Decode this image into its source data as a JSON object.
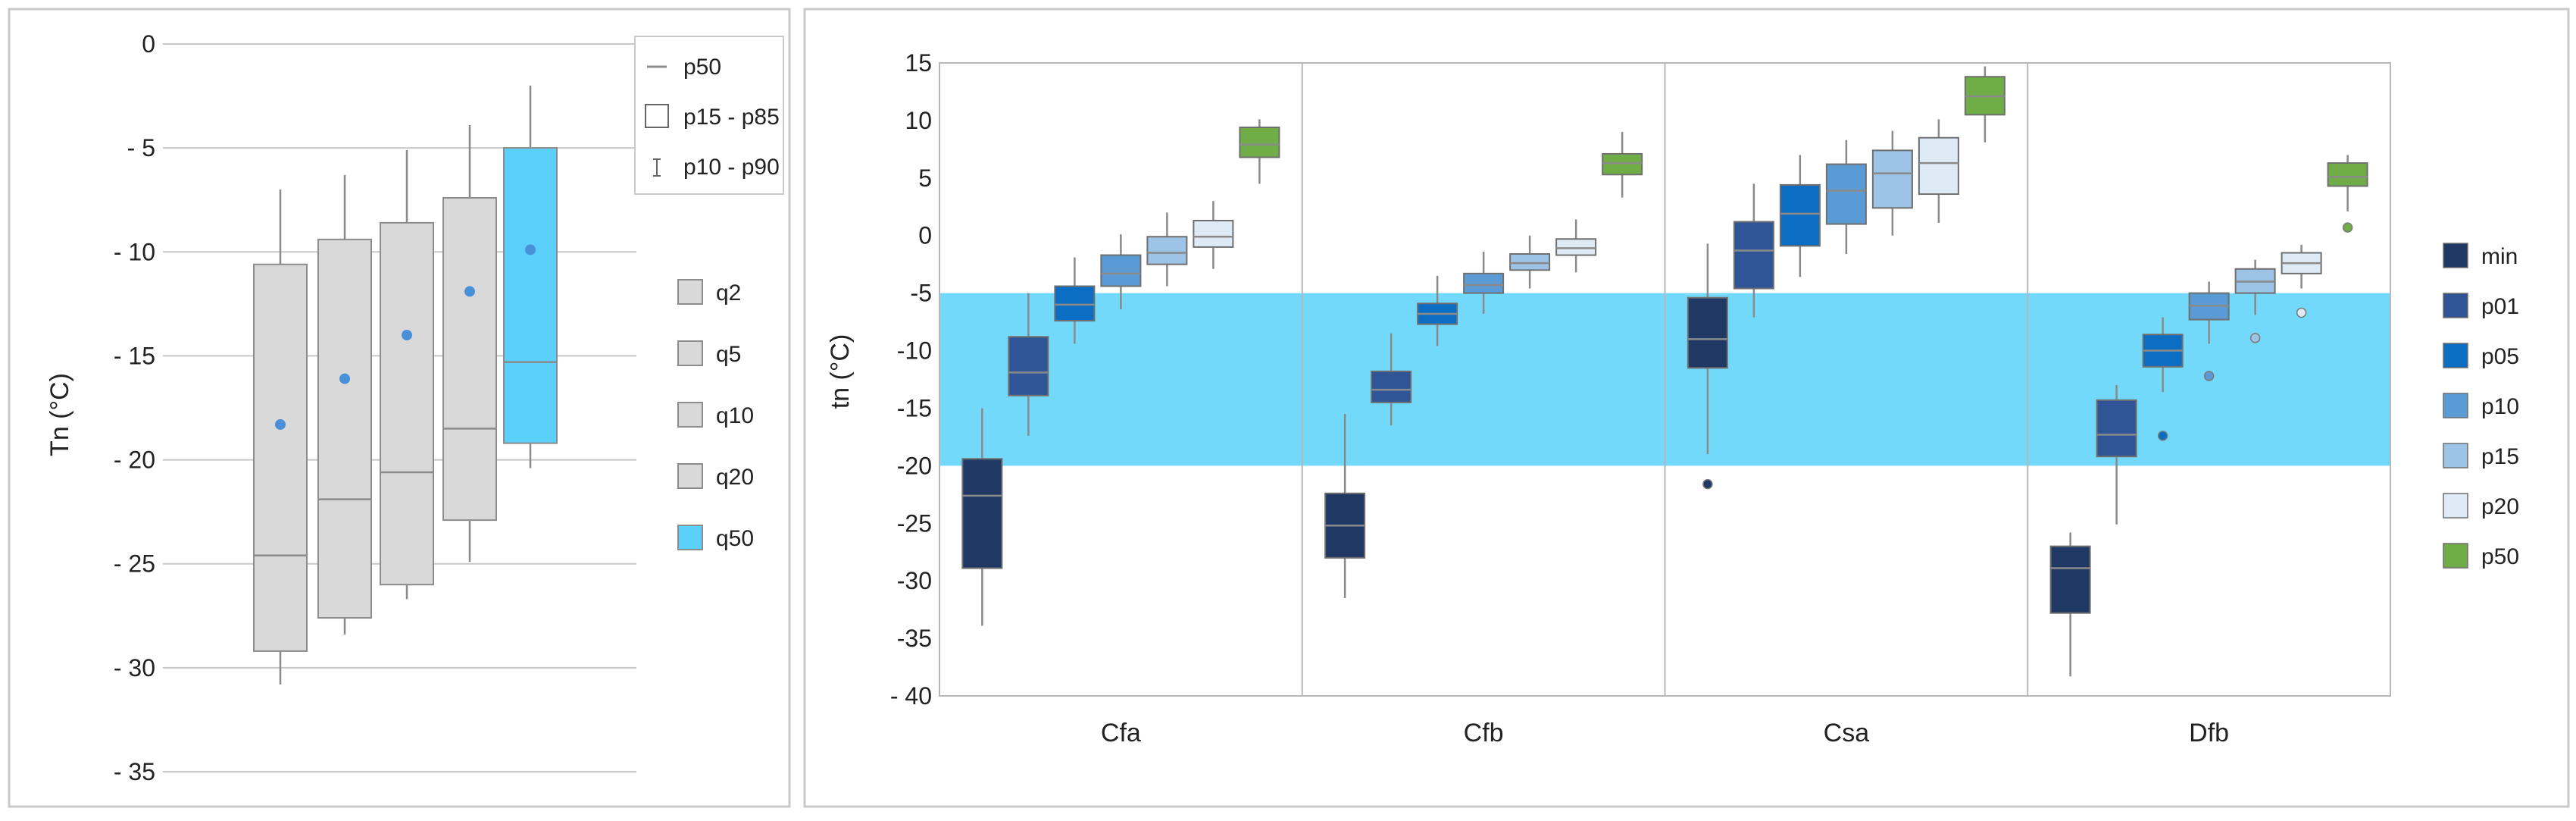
{
  "chart_data": [
    {
      "type": "boxplot",
      "ylabel": "Tn (°C)",
      "ylim": [
        -35,
        0
      ],
      "yticks": [
        0,
        -5,
        -10,
        -15,
        -20,
        -25,
        -30,
        -35
      ],
      "ytick_labels": [
        "0",
        "- 5",
        "- 10",
        "- 15",
        "- 20",
        "- 25",
        "- 30",
        "- 35"
      ],
      "colors": {
        "q": "#d9d9d9",
        "q50": "#5bd0fa",
        "box_stroke": "#8c8c8c",
        "mean_dot": "#4a90d9"
      },
      "stat_legend": [
        {
          "key": "median",
          "label": "p50"
        },
        {
          "key": "box",
          "label": "p15 - p85"
        },
        {
          "key": "whisker",
          "label": "p10 - p90"
        }
      ],
      "series": [
        {
          "name": "q2",
          "p10": -30.8,
          "p15": -29.2,
          "p50": -24.6,
          "p85": -10.6,
          "p90": -7.0,
          "mean": -18.3
        },
        {
          "name": "q5",
          "p10": -28.4,
          "p15": -27.6,
          "p50": -21.9,
          "p85": -9.4,
          "p90": -6.3,
          "mean": -16.1
        },
        {
          "name": "q10",
          "p10": -26.7,
          "p15": -26.0,
          "p50": -20.6,
          "p85": -8.6,
          "p90": -5.1,
          "mean": -14.0
        },
        {
          "name": "q20",
          "p10": -24.9,
          "p15": -22.9,
          "p50": -18.5,
          "p85": -7.4,
          "p90": -3.9,
          "mean": -11.9
        },
        {
          "name": "q50",
          "p10": -20.4,
          "p15": -19.2,
          "p50": -15.3,
          "p85": -5.0,
          "p90": -2.0,
          "mean": -9.9
        }
      ]
    },
    {
      "type": "boxplot",
      "ylabel": "tn (°C)",
      "ylim": [
        -40,
        15
      ],
      "yticks": [
        15,
        10,
        5,
        0,
        -5,
        -10,
        -15,
        -20,
        -25,
        -30,
        -35,
        -40
      ],
      "ytick_labels": [
        "15",
        "10",
        "5",
        "0",
        "-5",
        "-10",
        "-15",
        "-20",
        "-25",
        "-30",
        "-35",
        "- 40"
      ],
      "highlight_band": {
        "from": -20,
        "to": -5,
        "color": "#72d9fb"
      },
      "categories": [
        "Cfa",
        "Cfb",
        "Csa",
        "Dfb"
      ],
      "series_names": [
        "min",
        "p01",
        "p05",
        "p10",
        "p15",
        "p20",
        "p50"
      ],
      "series_colors": [
        "#1f3864",
        "#2f5597",
        "#0b6ec2",
        "#5b9bd5",
        "#9dc3e6",
        "#deebf7",
        "#70ad47"
      ],
      "groups": [
        {
          "category": "Cfa",
          "boxes": [
            {
              "series": "min",
              "whisker_low": -33.9,
              "q1": -28.9,
              "median": -22.6,
              "q3": -19.4,
              "whisker_high": -15.0
            },
            {
              "series": "p01",
              "whisker_low": -17.4,
              "q1": -13.9,
              "median": -11.9,
              "q3": -8.8,
              "whisker_high": -5.0
            },
            {
              "series": "p05",
              "whisker_low": -9.4,
              "q1": -7.4,
              "median": -6.0,
              "q3": -4.4,
              "whisker_high": -1.9
            },
            {
              "series": "p10",
              "whisker_low": -6.4,
              "q1": -4.4,
              "median": -3.3,
              "q3": -1.7,
              "whisker_high": 0.1
            },
            {
              "series": "p15",
              "whisker_low": -4.4,
              "q1": -2.5,
              "median": -1.5,
              "q3": -0.1,
              "whisker_high": 2.0
            },
            {
              "series": "p20",
              "whisker_low": -2.9,
              "q1": -1.0,
              "median": -0.1,
              "q3": 1.3,
              "whisker_high": 3.0
            },
            {
              "series": "p50",
              "whisker_low": 4.5,
              "q1": 6.8,
              "median": 7.9,
              "q3": 9.4,
              "whisker_high": 10.1
            }
          ]
        },
        {
          "category": "Cfb",
          "boxes": [
            {
              "series": "min",
              "whisker_low": -31.5,
              "q1": -28.0,
              "median": -25.2,
              "q3": -22.4,
              "whisker_high": -15.5
            },
            {
              "series": "p01",
              "whisker_low": -16.5,
              "q1": -14.5,
              "median": -13.4,
              "q3": -11.8,
              "whisker_high": -8.5
            },
            {
              "series": "p05",
              "whisker_low": -9.6,
              "q1": -7.7,
              "median": -6.8,
              "q3": -5.9,
              "whisker_high": -3.5
            },
            {
              "series": "p10",
              "whisker_low": -6.8,
              "q1": -5.0,
              "median": -4.3,
              "q3": -3.3,
              "whisker_high": -1.4
            },
            {
              "series": "p15",
              "whisker_low": -4.6,
              "q1": -3.0,
              "median": -2.4,
              "q3": -1.6,
              "whisker_high": 0.0
            },
            {
              "series": "p20",
              "whisker_low": -3.2,
              "q1": -1.7,
              "median": -1.1,
              "q3": -0.3,
              "whisker_high": 1.4
            },
            {
              "series": "p50",
              "whisker_low": 3.3,
              "q1": 5.3,
              "median": 6.3,
              "q3": 7.1,
              "whisker_high": 9.0
            }
          ]
        },
        {
          "category": "Csa",
          "boxes": [
            {
              "series": "min",
              "whisker_low": -19.0,
              "q1": -11.5,
              "median": -9.0,
              "q3": -5.4,
              "whisker_high": -0.7,
              "outliers": [
                -21.6
              ]
            },
            {
              "series": "p01",
              "whisker_low": -7.1,
              "q1": -4.6,
              "median": -1.3,
              "q3": 1.2,
              "whisker_high": 4.5
            },
            {
              "series": "p05",
              "whisker_low": -3.6,
              "q1": -0.9,
              "median": 1.9,
              "q3": 4.4,
              "whisker_high": 7.0
            },
            {
              "series": "p10",
              "whisker_low": -1.6,
              "q1": 1.0,
              "median": 3.9,
              "q3": 6.2,
              "whisker_high": 8.3
            },
            {
              "series": "p15",
              "whisker_low": 0.0,
              "q1": 2.4,
              "median": 5.4,
              "q3": 7.4,
              "whisker_high": 9.1
            },
            {
              "series": "p20",
              "whisker_low": 1.1,
              "q1": 3.6,
              "median": 6.3,
              "q3": 8.5,
              "whisker_high": 10.1
            },
            {
              "series": "p50",
              "whisker_low": 8.1,
              "q1": 10.5,
              "median": 12.1,
              "q3": 13.8,
              "whisker_high": 14.7
            }
          ]
        },
        {
          "category": "Dfb",
          "boxes": [
            {
              "series": "min",
              "whisker_low": -38.3,
              "q1": -32.8,
              "median": -28.9,
              "q3": -27.0,
              "whisker_high": -25.8
            },
            {
              "series": "p01",
              "whisker_low": -25.1,
              "q1": -19.2,
              "median": -17.3,
              "q3": -14.3,
              "whisker_high": -13.0
            },
            {
              "series": "p05",
              "whisker_low": -13.6,
              "q1": -11.4,
              "median": -10.0,
              "q3": -8.6,
              "whisker_high": -7.1,
              "outliers": [
                -17.4
              ]
            },
            {
              "series": "p10",
              "whisker_low": -9.4,
              "q1": -7.3,
              "median": -6.1,
              "q3": -5.0,
              "whisker_high": -4.0,
              "outliers": [
                -12.2
              ]
            },
            {
              "series": "p15",
              "whisker_low": -6.9,
              "q1": -5.0,
              "median": -4.0,
              "q3": -2.9,
              "whisker_high": -2.1,
              "outliers": [
                -8.9
              ]
            },
            {
              "series": "p20",
              "whisker_low": -4.6,
              "q1": -3.3,
              "median": -2.4,
              "q3": -1.5,
              "whisker_high": -0.8,
              "outliers": [
                -6.7
              ]
            },
            {
              "series": "p50",
              "whisker_low": 2.1,
              "q1": 4.3,
              "median": 5.1,
              "q3": 6.3,
              "whisker_high": 7.0,
              "outliers": [
                0.7
              ]
            }
          ]
        }
      ]
    }
  ]
}
